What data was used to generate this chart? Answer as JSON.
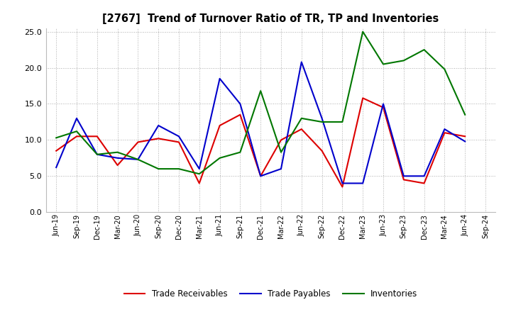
{
  "title": "[2767]  Trend of Turnover Ratio of TR, TP and Inventories",
  "x_labels": [
    "Jun-19",
    "Sep-19",
    "Dec-19",
    "Mar-20",
    "Jun-20",
    "Sep-20",
    "Dec-20",
    "Mar-21",
    "Jun-21",
    "Sep-21",
    "Dec-21",
    "Mar-22",
    "Jun-22",
    "Sep-22",
    "Dec-22",
    "Mar-23",
    "Jun-23",
    "Sep-23",
    "Dec-23",
    "Mar-24",
    "Jun-24",
    "Sep-24"
  ],
  "trade_receivables": [
    8.5,
    10.5,
    10.5,
    6.5,
    9.7,
    10.2,
    9.7,
    4.0,
    12.0,
    13.5,
    5.0,
    10.0,
    11.5,
    8.5,
    3.5,
    15.8,
    14.5,
    4.5,
    4.0,
    11.0,
    10.5,
    null
  ],
  "trade_payables": [
    6.2,
    13.0,
    8.0,
    7.5,
    7.3,
    12.0,
    10.5,
    6.0,
    18.5,
    15.0,
    5.0,
    6.0,
    20.8,
    13.0,
    4.0,
    4.0,
    15.0,
    5.0,
    5.0,
    11.5,
    9.8,
    null
  ],
  "inventories": [
    10.3,
    11.2,
    8.0,
    8.3,
    7.3,
    6.0,
    6.0,
    5.3,
    7.5,
    8.3,
    16.8,
    8.3,
    13.0,
    12.5,
    12.5,
    25.0,
    20.5,
    21.0,
    22.5,
    19.8,
    13.5,
    null
  ],
  "ylim": [
    0,
    25.5
  ],
  "yticks": [
    0.0,
    5.0,
    10.0,
    15.0,
    20.0,
    25.0
  ],
  "tr_color": "#dd0000",
  "tp_color": "#0000cc",
  "inv_color": "#007700",
  "background_color": "#ffffff",
  "grid_color": "#999999",
  "legend_labels": [
    "Trade Receivables",
    "Trade Payables",
    "Inventories"
  ]
}
